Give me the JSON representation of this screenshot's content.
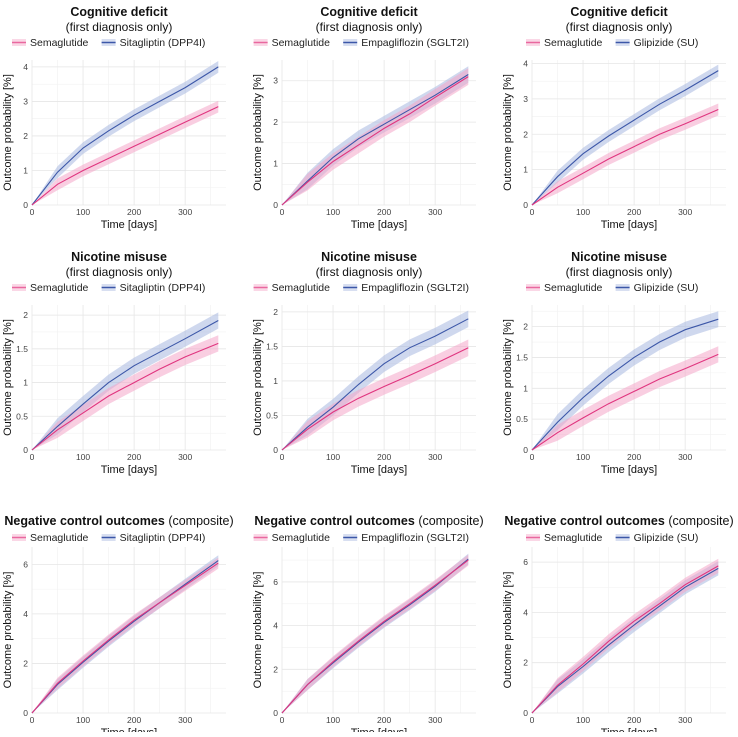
{
  "colors": {
    "semaglutide": "#e0357f",
    "semaglutide_band": "#f4a6c8",
    "comparator": "#3c57a8",
    "comparator_band": "#a8b8e0",
    "grid": "#e6e6e6"
  },
  "chart_data": [
    {
      "type": "line",
      "title_bold": "Cognitive deficit",
      "title_rest": "",
      "subtitle": "(first diagnosis only)",
      "legend": [
        "Semaglutide",
        "Sitagliptin (DPP4I)"
      ],
      "xlabel": "Time [days]",
      "ylabel": "Outcome probability [%]",
      "xlim": [
        0,
        380
      ],
      "ylim": [
        0,
        4.2
      ],
      "xticks": [
        0,
        100,
        200,
        300
      ],
      "yticks": [
        0,
        1,
        2,
        3,
        4
      ],
      "series": [
        {
          "name": "Semaglutide",
          "x": [
            0,
            50,
            100,
            150,
            200,
            250,
            300,
            365
          ],
          "values": [
            0,
            0.6,
            1.0,
            1.35,
            1.7,
            2.05,
            2.4,
            2.85
          ],
          "band": 0.17
        },
        {
          "name": "Sitagliptin (DPP4I)",
          "x": [
            0,
            50,
            100,
            150,
            200,
            250,
            300,
            365
          ],
          "values": [
            0,
            0.95,
            1.65,
            2.15,
            2.6,
            3.0,
            3.4,
            4.0
          ],
          "band": 0.17
        }
      ]
    },
    {
      "type": "line",
      "title_bold": "Cognitive deficit",
      "title_rest": "",
      "subtitle": "(first diagnosis only)",
      "legend": [
        "Semaglutide",
        "Empagliflozin (SGLT2I)"
      ],
      "xlabel": "Time [days]",
      "ylabel": "Outcome probability [%]",
      "xlim": [
        0,
        380
      ],
      "ylim": [
        0,
        3.5
      ],
      "xticks": [
        0,
        100,
        200,
        300
      ],
      "yticks": [
        0,
        1,
        2,
        3
      ],
      "series": [
        {
          "name": "Semaglutide",
          "x": [
            0,
            50,
            100,
            150,
            200,
            250,
            300,
            365
          ],
          "values": [
            0,
            0.55,
            1.05,
            1.45,
            1.85,
            2.2,
            2.6,
            3.1
          ],
          "band": 0.2
        },
        {
          "name": "Empagliflozin (SGLT2I)",
          "x": [
            0,
            50,
            100,
            150,
            200,
            250,
            300,
            365
          ],
          "values": [
            0,
            0.58,
            1.15,
            1.6,
            1.95,
            2.3,
            2.65,
            3.15
          ],
          "band": 0.2
        }
      ]
    },
    {
      "type": "line",
      "title_bold": "Cognitive deficit",
      "title_rest": "",
      "subtitle": "(first diagnosis only)",
      "legend": [
        "Semaglutide",
        "Glipizide (SU)"
      ],
      "xlabel": "Time [days]",
      "ylabel": "Outcome probability [%]",
      "xlim": [
        0,
        380
      ],
      "ylim": [
        0,
        4.1
      ],
      "xticks": [
        0,
        100,
        200,
        300
      ],
      "yticks": [
        0,
        1,
        2,
        3,
        4
      ],
      "series": [
        {
          "name": "Semaglutide",
          "x": [
            0,
            50,
            100,
            150,
            200,
            250,
            300,
            365
          ],
          "values": [
            0,
            0.5,
            0.9,
            1.3,
            1.65,
            2.0,
            2.3,
            2.7
          ],
          "band": 0.17
        },
        {
          "name": "Glipizide (SU)",
          "x": [
            0,
            50,
            100,
            150,
            200,
            250,
            300,
            365
          ],
          "values": [
            0,
            0.8,
            1.45,
            1.95,
            2.4,
            2.85,
            3.25,
            3.8
          ],
          "band": 0.17
        }
      ]
    },
    {
      "type": "line",
      "title_bold": "Nicotine misuse",
      "title_rest": "",
      "subtitle": "(first diagnosis only)",
      "legend": [
        "Semaglutide",
        "Sitagliptin (DPP4I)"
      ],
      "xlabel": "Time [days]",
      "ylabel": "Outcome probability [%]",
      "xlim": [
        0,
        380
      ],
      "ylim": [
        0,
        2.15
      ],
      "xticks": [
        0,
        100,
        200,
        300
      ],
      "yticks": [
        0,
        0.5,
        1.0,
        1.5,
        2.0
      ],
      "series": [
        {
          "name": "Semaglutide",
          "x": [
            0,
            50,
            100,
            150,
            200,
            250,
            300,
            365
          ],
          "values": [
            0,
            0.3,
            0.55,
            0.8,
            1.0,
            1.2,
            1.38,
            1.58
          ],
          "band": 0.12
        },
        {
          "name": "Sitagliptin (DPP4I)",
          "x": [
            0,
            50,
            100,
            150,
            200,
            250,
            300,
            365
          ],
          "values": [
            0,
            0.35,
            0.68,
            1.0,
            1.25,
            1.45,
            1.65,
            1.92
          ],
          "band": 0.12
        }
      ]
    },
    {
      "type": "line",
      "title_bold": "Nicotine misuse",
      "title_rest": "",
      "subtitle": "(first diagnosis only)",
      "legend": [
        "Semaglutide",
        "Empagliflozin (SGLT2I)"
      ],
      "xlabel": "Time [days]",
      "ylabel": "Outcome probability [%]",
      "xlim": [
        0,
        380
      ],
      "ylim": [
        0,
        2.1
      ],
      "xticks": [
        0,
        100,
        200,
        300
      ],
      "yticks": [
        0,
        0.5,
        1.0,
        1.5,
        2.0
      ],
      "series": [
        {
          "name": "Semaglutide",
          "x": [
            0,
            50,
            100,
            150,
            200,
            250,
            300,
            365
          ],
          "values": [
            0,
            0.3,
            0.55,
            0.75,
            0.92,
            1.08,
            1.25,
            1.48
          ],
          "band": 0.12
        },
        {
          "name": "Empagliflozin (SGLT2I)",
          "x": [
            0,
            50,
            100,
            150,
            200,
            250,
            300,
            365
          ],
          "values": [
            0,
            0.33,
            0.62,
            0.95,
            1.25,
            1.48,
            1.65,
            1.9
          ],
          "band": 0.12
        }
      ]
    },
    {
      "type": "line",
      "title_bold": "Nicotine misuse",
      "title_rest": "",
      "subtitle": "(first diagnosis only)",
      "legend": [
        "Semaglutide",
        "Glipizide (SU)"
      ],
      "xlabel": "Time [days]",
      "ylabel": "Outcome probability [%]",
      "xlim": [
        0,
        380
      ],
      "ylim": [
        0,
        2.35
      ],
      "xticks": [
        0,
        100,
        200,
        300
      ],
      "yticks": [
        0,
        0.5,
        1.0,
        1.5,
        2.0
      ],
      "series": [
        {
          "name": "Semaglutide",
          "x": [
            0,
            50,
            100,
            150,
            200,
            250,
            300,
            365
          ],
          "values": [
            0,
            0.28,
            0.52,
            0.75,
            0.95,
            1.15,
            1.32,
            1.55
          ],
          "band": 0.13
        },
        {
          "name": "Glipizide (SU)",
          "x": [
            0,
            50,
            100,
            150,
            200,
            250,
            300,
            365
          ],
          "values": [
            0,
            0.45,
            0.85,
            1.2,
            1.5,
            1.75,
            1.95,
            2.12
          ],
          "band": 0.13
        }
      ]
    },
    {
      "type": "line",
      "title_bold": "Negative control outcomes",
      "title_rest": "(composite)",
      "subtitle": "",
      "legend": [
        "Semaglutide",
        "Sitagliptin (DPP4I)"
      ],
      "xlabel": "Time [days]",
      "ylabel": "Outcome probability [%]",
      "xlim": [
        0,
        380
      ],
      "ylim": [
        0,
        6.7
      ],
      "xticks": [
        0,
        100,
        200,
        300
      ],
      "yticks": [
        0,
        2,
        4,
        6
      ],
      "series": [
        {
          "name": "Semaglutide",
          "x": [
            0,
            50,
            100,
            150,
            200,
            250,
            300,
            365
          ],
          "values": [
            0,
            1.2,
            2.1,
            2.95,
            3.75,
            4.45,
            5.15,
            6.05
          ],
          "band": 0.22
        },
        {
          "name": "Sitagliptin (DPP4I)",
          "x": [
            0,
            50,
            100,
            150,
            200,
            250,
            300,
            365
          ],
          "values": [
            0,
            1.15,
            2.05,
            2.9,
            3.7,
            4.45,
            5.2,
            6.15
          ],
          "band": 0.22
        }
      ]
    },
    {
      "type": "line",
      "title_bold": "Negative control outcomes",
      "title_rest": "(composite)",
      "subtitle": "",
      "legend": [
        "Semaglutide",
        "Empagliflozin (SGLT2I)"
      ],
      "xlabel": "Time [days]",
      "ylabel": "Outcome probability [%]",
      "xlim": [
        0,
        380
      ],
      "ylim": [
        0,
        7.6
      ],
      "xticks": [
        0,
        100,
        200,
        300
      ],
      "yticks": [
        0,
        2,
        4,
        6
      ],
      "series": [
        {
          "name": "Semaglutide",
          "x": [
            0,
            50,
            100,
            150,
            200,
            250,
            300,
            365
          ],
          "values": [
            0,
            1.3,
            2.35,
            3.3,
            4.2,
            5.0,
            5.85,
            7.0
          ],
          "band": 0.25
        },
        {
          "name": "Empagliflozin (SGLT2I)",
          "x": [
            0,
            50,
            100,
            150,
            200,
            250,
            300,
            365
          ],
          "values": [
            0,
            1.3,
            2.3,
            3.25,
            4.15,
            4.95,
            5.8,
            7.05
          ],
          "band": 0.25
        }
      ]
    },
    {
      "type": "line",
      "title_bold": "Negative control outcomes",
      "title_rest": "(composite)",
      "subtitle": "",
      "legend": [
        "Semaglutide",
        "Glipizide (SU)"
      ],
      "xlabel": "Time [days]",
      "ylabel": "Outcome probability [%]",
      "xlim": [
        0,
        380
      ],
      "ylim": [
        0,
        6.6
      ],
      "xticks": [
        0,
        100,
        200,
        300
      ],
      "yticks": [
        0,
        2,
        4,
        6
      ],
      "series": [
        {
          "name": "Semaglutide",
          "x": [
            0,
            50,
            100,
            150,
            200,
            250,
            300,
            365
          ],
          "values": [
            0,
            1.1,
            1.95,
            2.85,
            3.65,
            4.35,
            5.1,
            5.85
          ],
          "band": 0.28
        },
        {
          "name": "Glipizide (SU)",
          "x": [
            0,
            50,
            100,
            150,
            200,
            250,
            300,
            365
          ],
          "values": [
            0,
            1.05,
            1.85,
            2.7,
            3.5,
            4.25,
            5.0,
            5.75
          ],
          "band": 0.28
        }
      ]
    }
  ]
}
